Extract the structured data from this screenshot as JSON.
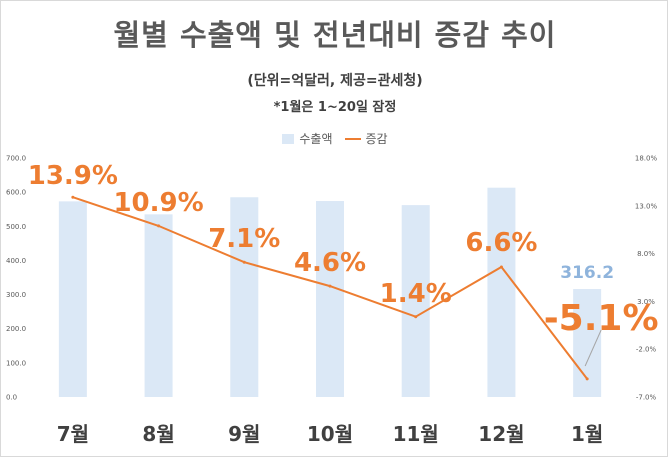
{
  "title": "월별 수출액 및 전년대비 증감 추이",
  "subtitle": "(단위=억달러, 제공=관세청)",
  "note": "*1월은 1~20일 잠정",
  "legend": {
    "bar": "수출액",
    "line": "증감"
  },
  "colors": {
    "bar": "#dbe8f6",
    "line": "#ed7d31",
    "bar_label": "#8fb4dc"
  },
  "chart_data": {
    "type": "bar+line",
    "categories": [
      "7월",
      "8월",
      "9월",
      "10월",
      "11월",
      "12월",
      "1월"
    ],
    "series": [
      {
        "name": "수출액",
        "type": "bar",
        "axis": "left",
        "values": [
          573,
          535,
          585,
          574,
          562,
          613,
          316.2
        ]
      },
      {
        "name": "증감",
        "type": "line",
        "axis": "right",
        "values": [
          13.9,
          10.9,
          7.1,
          4.6,
          1.4,
          6.6,
          -5.1
        ]
      }
    ],
    "y_left": {
      "min": 0,
      "max": 700,
      "ticks": [
        "0.0",
        "100.0",
        "200.0",
        "300.0",
        "400.0",
        "500.0",
        "600.0",
        "700.0"
      ]
    },
    "y_right": {
      "min": -7,
      "max": 18,
      "ticks": [
        "-7.0%",
        "-2.0%",
        "3.0%",
        "8.0%",
        "13.0%",
        "18.0%"
      ]
    },
    "line_labels": [
      "13.9%",
      "10.9%",
      "7.1%",
      "4.6%",
      "1.4%",
      "6.6%",
      "-5.1%"
    ],
    "bar_labels": [
      "",
      "",
      "",
      "",
      "",
      "",
      "316.2"
    ],
    "grid": false,
    "legend_position": "top"
  }
}
